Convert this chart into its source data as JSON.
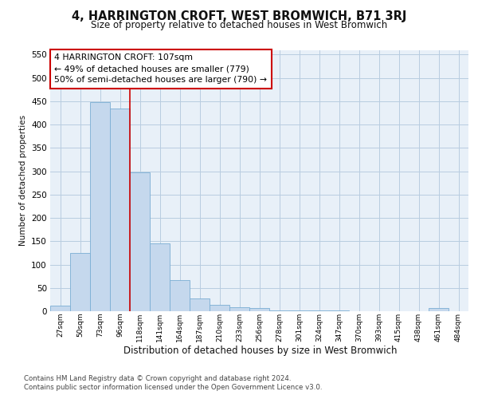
{
  "title": "4, HARRINGTON CROFT, WEST BROMWICH, B71 3RJ",
  "subtitle": "Size of property relative to detached houses in West Bromwich",
  "xlabel": "Distribution of detached houses by size in West Bromwich",
  "ylabel": "Number of detached properties",
  "footer_line1": "Contains HM Land Registry data © Crown copyright and database right 2024.",
  "footer_line2": "Contains public sector information licensed under the Open Government Licence v3.0.",
  "bar_color": "#c5d8ed",
  "bar_edge_color": "#7aaed4",
  "grid_color": "#b8cce0",
  "vline_color": "#cc0000",
  "categories": [
    "27sqm",
    "50sqm",
    "73sqm",
    "96sqm",
    "118sqm",
    "141sqm",
    "164sqm",
    "187sqm",
    "210sqm",
    "233sqm",
    "256sqm",
    "278sqm",
    "301sqm",
    "324sqm",
    "347sqm",
    "370sqm",
    "393sqm",
    "415sqm",
    "438sqm",
    "461sqm",
    "484sqm"
  ],
  "values": [
    12,
    124,
    448,
    435,
    298,
    145,
    67,
    27,
    13,
    8,
    6,
    2,
    1,
    1,
    1,
    0,
    0,
    0,
    0,
    6,
    0
  ],
  "ylim": [
    0,
    560
  ],
  "yticks": [
    0,
    50,
    100,
    150,
    200,
    250,
    300,
    350,
    400,
    450,
    500,
    550
  ],
  "annotation_line1": "4 HARRINGTON CROFT: 107sqm",
  "annotation_line2": "← 49% of detached houses are smaller (779)",
  "annotation_line3": "50% of semi-detached houses are larger (790) →",
  "vline_x_index": 3.5,
  "background_color": "#e8f0f8"
}
